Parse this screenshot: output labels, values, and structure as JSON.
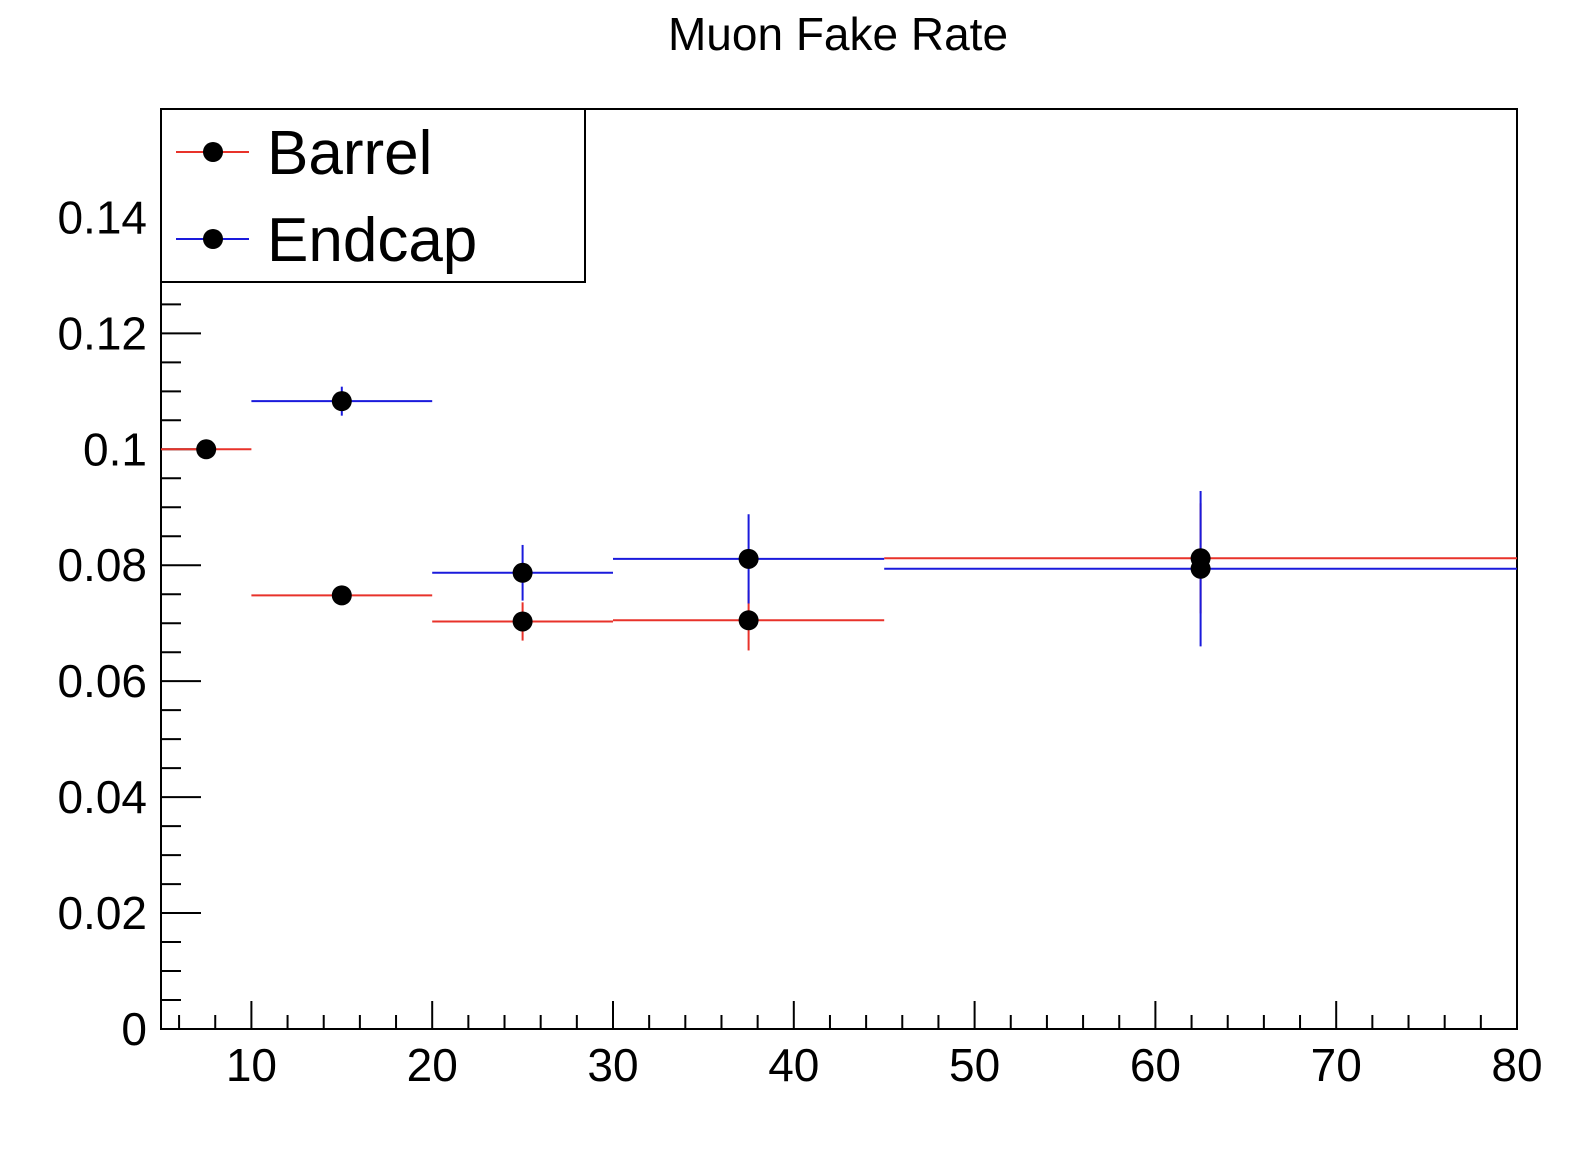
{
  "chart_data": {
    "type": "scatter",
    "title": "Muon Fake Rate",
    "xlabel": "",
    "ylabel": "",
    "xlim": [
      5,
      80
    ],
    "ylim": [
      0,
      0.1587
    ],
    "xticks": [
      10,
      20,
      30,
      40,
      50,
      60,
      70,
      80
    ],
    "xtick_labels": [
      "10",
      "20",
      "30",
      "40",
      "50",
      "60",
      "70",
      "80"
    ],
    "yticks": [
      0,
      0.02,
      0.04,
      0.06,
      0.08,
      0.1,
      0.12,
      0.14
    ],
    "ytick_labels": [
      "0",
      "0.02",
      "0.04",
      "0.06",
      "0.08",
      "0.1",
      "0.12",
      "0.14"
    ],
    "grid": false,
    "legend_position": "top-left",
    "series": [
      {
        "name": "Barrel",
        "color": "#e8322a",
        "points": [
          {
            "x": 7.5,
            "xlow": 5,
            "xhigh": 10,
            "y": 0.1,
            "yerr": 0.0
          },
          {
            "x": 15,
            "xlow": 10,
            "xhigh": 20,
            "y": 0.0748,
            "yerr": 0.0
          },
          {
            "x": 25,
            "xlow": 20,
            "xhigh": 30,
            "y": 0.0703,
            "yerr": 0.0033
          },
          {
            "x": 37.5,
            "xlow": 30,
            "xhigh": 45,
            "y": 0.0705,
            "yerr": 0.0052
          },
          {
            "x": 62.5,
            "xlow": 45,
            "xhigh": 80,
            "y": 0.0812,
            "yerr": 0.0095
          }
        ]
      },
      {
        "name": "Endcap",
        "color": "#1a1adc",
        "points": [
          {
            "x": 15,
            "xlow": 10,
            "xhigh": 20,
            "y": 0.1083,
            "yerr": 0.0025
          },
          {
            "x": 25,
            "xlow": 20,
            "xhigh": 30,
            "y": 0.0787,
            "yerr": 0.0048
          },
          {
            "x": 37.5,
            "xlow": 30,
            "xhigh": 45,
            "y": 0.0811,
            "yerr": 0.0077
          },
          {
            "x": 62.5,
            "xlow": 45,
            "xhigh": 80,
            "y": 0.0794,
            "yerr": 0.0134
          }
        ]
      }
    ]
  }
}
